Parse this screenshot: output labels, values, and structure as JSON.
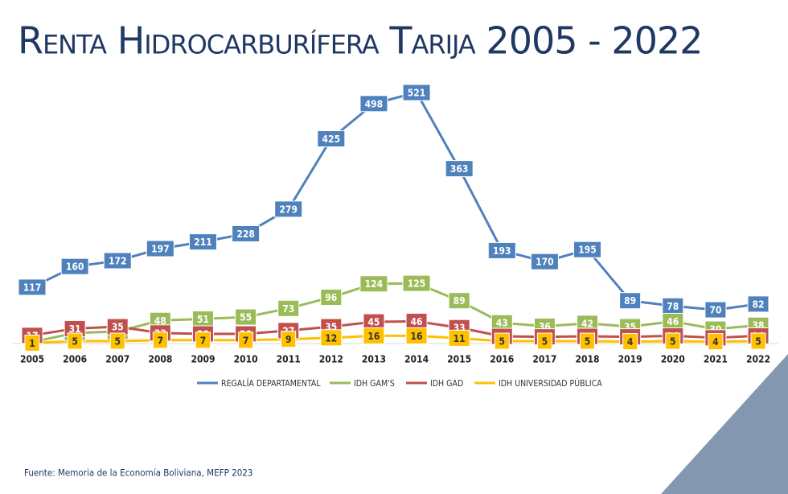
{
  "chart_data": {
    "type": "line",
    "title": "Renta Hidrocarburífera Tarija 2005 - 2022",
    "source": "Fuente: Memoria de la Economía Boliviana, MEFP 2023",
    "categories": [
      "2005",
      "2006",
      "2007",
      "2008",
      "2009",
      "2010",
      "2011",
      "2012",
      "2013",
      "2014",
      "2015",
      "2016",
      "2017",
      "2018",
      "2019",
      "2020",
      "2021",
      "2022"
    ],
    "series": [
      {
        "name": "REGALÍA DEPARTAMENTAL",
        "color": "#4f81bd",
        "values": [
          117,
          160,
          172,
          197,
          211,
          228,
          279,
          425,
          498,
          521,
          363,
          193,
          170,
          195,
          89,
          78,
          70,
          82
        ]
      },
      {
        "name": "IDH GAM'S",
        "color": "#9bbb59",
        "values": [
          3,
          22,
          25,
          48,
          51,
          55,
          73,
          96,
          124,
          125,
          89,
          43,
          36,
          42,
          35,
          46,
          30,
          38
        ]
      },
      {
        "name": "IDH GAD",
        "color": "#c0504d",
        "values": [
          17,
          31,
          35,
          22,
          20,
          20,
          27,
          35,
          45,
          46,
          33,
          15,
          14,
          15,
          14,
          16,
          12,
          16
        ]
      },
      {
        "name": "IDH UNIVERSIDAD PÚBLICA",
        "color": "#ffc000",
        "values": [
          1,
          5,
          5,
          7,
          7,
          7,
          9,
          12,
          16,
          16,
          11,
          5,
          5,
          5,
          4,
          5,
          4,
          5
        ]
      }
    ]
  }
}
